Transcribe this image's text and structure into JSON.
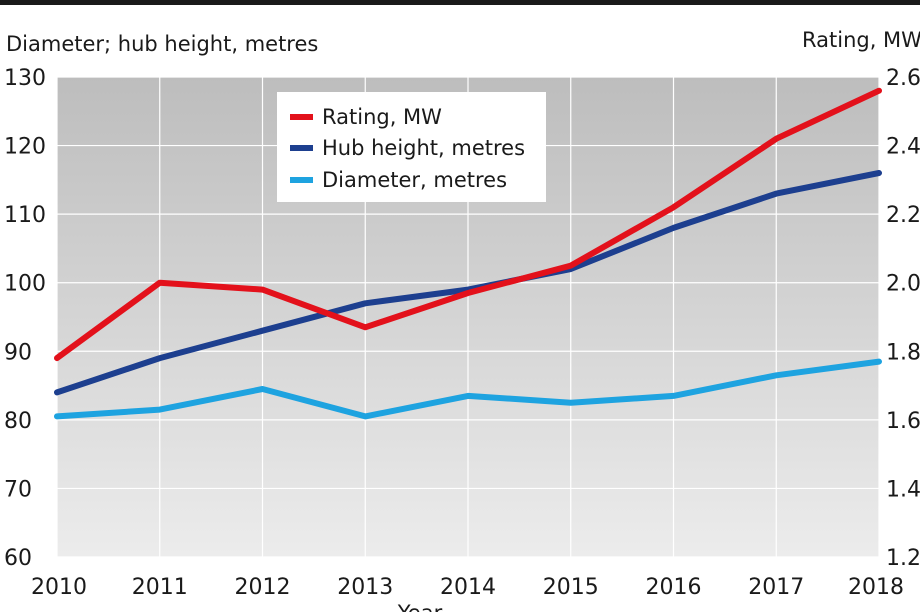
{
  "chart_data": {
    "type": "line",
    "left_axis_label": "Diameter; hub height, metres",
    "right_axis_label": "Rating, MW",
    "xlabel": "Year",
    "x": [
      2010,
      2011,
      2012,
      2013,
      2014,
      2015,
      2016,
      2017,
      2018
    ],
    "y_left_lim": [
      60,
      130
    ],
    "y_left_ticks": [
      60,
      70,
      80,
      90,
      100,
      110,
      120,
      130
    ],
    "y_right_lim": [
      1.2,
      2.6
    ],
    "y_right_ticks": [
      "1.2",
      "1.4",
      "1.6",
      "1.8",
      "2.0",
      "2.2",
      "2.4",
      "2.6"
    ],
    "legend_position": "top-left",
    "series": [
      {
        "name": "Rating, MW",
        "axis": "right",
        "color": "#e3111b",
        "values": [
          1.78,
          2.0,
          1.98,
          1.87,
          1.97,
          2.05,
          2.22,
          2.42,
          2.56
        ]
      },
      {
        "name": "Hub height, metres",
        "axis": "left",
        "color": "#1d3f8f",
        "values": [
          84,
          89,
          93,
          97,
          99,
          102,
          108,
          113,
          116
        ]
      },
      {
        "name": "Diameter, metres",
        "axis": "left",
        "color": "#1ea3e0",
        "values": [
          80.5,
          81.5,
          84.5,
          80.5,
          83.5,
          82.5,
          83.5,
          86.5,
          88.5
        ]
      }
    ]
  }
}
